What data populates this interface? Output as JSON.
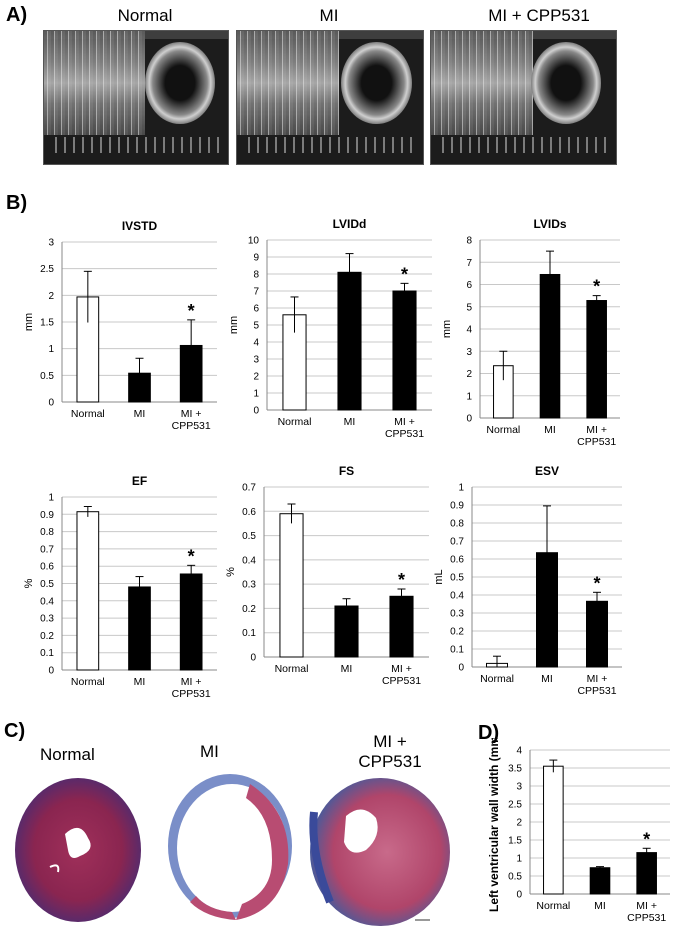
{
  "panels": {
    "A": "A)",
    "B": "B)",
    "C": "C)",
    "D": "D)"
  },
  "echo_titles": [
    "Normal",
    "MI",
    "MI + CPP531"
  ],
  "histology_titles": {
    "normal": "Normal",
    "mi": "MI",
    "mi_cpp_line1": "MI +",
    "mi_cpp_line2": "CPP531"
  },
  "significance_marker": "*",
  "colors": {
    "bar_normal": "#ffffff",
    "bar_treated": "#000000",
    "grid": "#c8c8c8"
  },
  "chart_data": [
    {
      "id": "ivstd",
      "type": "bar",
      "title": "IVSTD",
      "ylabel": "mm",
      "categories": [
        "Normal",
        "MI",
        "MI +\nCPP531"
      ],
      "values": [
        1.97,
        0.54,
        1.06
      ],
      "errors": [
        0.48,
        0.28,
        0.48
      ],
      "star": [
        false,
        false,
        true
      ],
      "ylim": [
        0,
        3
      ],
      "yticks": [
        0,
        0.5,
        1,
        1.5,
        2,
        2.5,
        3
      ],
      "ytick_labels": [
        "0",
        "0.5",
        "1",
        "1.5",
        "2",
        "2.5",
        "3"
      ]
    },
    {
      "id": "lvidd",
      "type": "bar",
      "title": "LVIDd",
      "ylabel": "mm",
      "categories": [
        "Normal",
        "MI",
        "MI +\nCPP531"
      ],
      "values": [
        5.6,
        8.1,
        7.0
      ],
      "errors": [
        1.05,
        1.1,
        0.45
      ],
      "star": [
        false,
        false,
        true
      ],
      "ylim": [
        0,
        10
      ],
      "yticks": [
        0,
        1,
        2,
        3,
        4,
        5,
        6,
        7,
        8,
        9,
        10
      ],
      "ytick_labels": [
        "0",
        "1",
        "2",
        "3",
        "4",
        "5",
        "6",
        "7",
        "8",
        "9",
        "10"
      ]
    },
    {
      "id": "lvids",
      "type": "bar",
      "title": "LVIDs",
      "ylabel": "mm",
      "categories": [
        "Normal",
        "MI",
        "MI +\nCPP531"
      ],
      "values": [
        2.35,
        6.45,
        5.28
      ],
      "errors": [
        0.65,
        1.05,
        0.22
      ],
      "star": [
        false,
        false,
        true
      ],
      "ylim": [
        0,
        8
      ],
      "yticks": [
        0,
        1,
        2,
        3,
        4,
        5,
        6,
        7,
        8
      ],
      "ytick_labels": [
        "0",
        "1",
        "2",
        "3",
        "4",
        "5",
        "6",
        "7",
        "8"
      ]
    },
    {
      "id": "ef",
      "type": "bar",
      "title": "EF",
      "ylabel": "%",
      "categories": [
        "Normal",
        "MI",
        "MI +\nCPP531"
      ],
      "values": [
        0.915,
        0.48,
        0.555
      ],
      "errors": [
        0.03,
        0.06,
        0.05
      ],
      "star": [
        false,
        false,
        true
      ],
      "ylim": [
        0,
        1
      ],
      "yticks": [
        0,
        0.1,
        0.2,
        0.3,
        0.4,
        0.5,
        0.6,
        0.7,
        0.8,
        0.9,
        1
      ],
      "ytick_labels": [
        "0",
        "0.1",
        "0.2",
        "0.3",
        "0.4",
        "0.5",
        "0.6",
        "0.7",
        "0.8",
        "0.9",
        "1"
      ]
    },
    {
      "id": "fs",
      "type": "bar",
      "title": "FS",
      "ylabel": "%",
      "categories": [
        "Normal",
        "MI",
        "MI +\nCPP531"
      ],
      "values": [
        0.59,
        0.21,
        0.25
      ],
      "errors": [
        0.04,
        0.03,
        0.03
      ],
      "star": [
        false,
        false,
        true
      ],
      "ylim": [
        0,
        0.7
      ],
      "yticks": [
        0,
        0.1,
        0.2,
        0.3,
        0.4,
        0.5,
        0.6,
        0.7
      ],
      "ytick_labels": [
        "0",
        "0.1",
        "0.2",
        "0.3",
        "0.4",
        "0.5",
        "0.6",
        "0.7"
      ]
    },
    {
      "id": "esv",
      "type": "bar",
      "title": "ESV",
      "ylabel": "mL",
      "categories": [
        "Normal",
        "MI",
        "MI +\nCPP531"
      ],
      "values": [
        0.02,
        0.635,
        0.365
      ],
      "errors": [
        0.04,
        0.26,
        0.05
      ],
      "star": [
        false,
        false,
        true
      ],
      "ylim": [
        0,
        1
      ],
      "yticks": [
        0,
        0.1,
        0.2,
        0.3,
        0.4,
        0.5,
        0.6,
        0.7,
        0.8,
        0.9,
        1
      ],
      "ytick_labels": [
        "0",
        "0.1",
        "0.2",
        "0.3",
        "0.4",
        "0.5",
        "0.6",
        "0.7",
        "0.8",
        "0.9",
        "1"
      ]
    },
    {
      "id": "lvww",
      "type": "bar",
      "title": "",
      "ylabel": "Left ventricular wall width (mm)",
      "categories": [
        "Normal",
        "MI",
        "MI +\nCPP531"
      ],
      "values": [
        3.55,
        0.73,
        1.15
      ],
      "errors": [
        0.17,
        0.03,
        0.12
      ],
      "star": [
        false,
        false,
        true
      ],
      "ylim": [
        0,
        4
      ],
      "yticks": [
        0,
        0.5,
        1,
        1.5,
        2,
        2.5,
        3,
        3.5,
        4
      ],
      "ytick_labels": [
        "0",
        "0.5",
        "1",
        "1.5",
        "2",
        "2.5",
        "3",
        "3.5",
        "4"
      ]
    }
  ]
}
